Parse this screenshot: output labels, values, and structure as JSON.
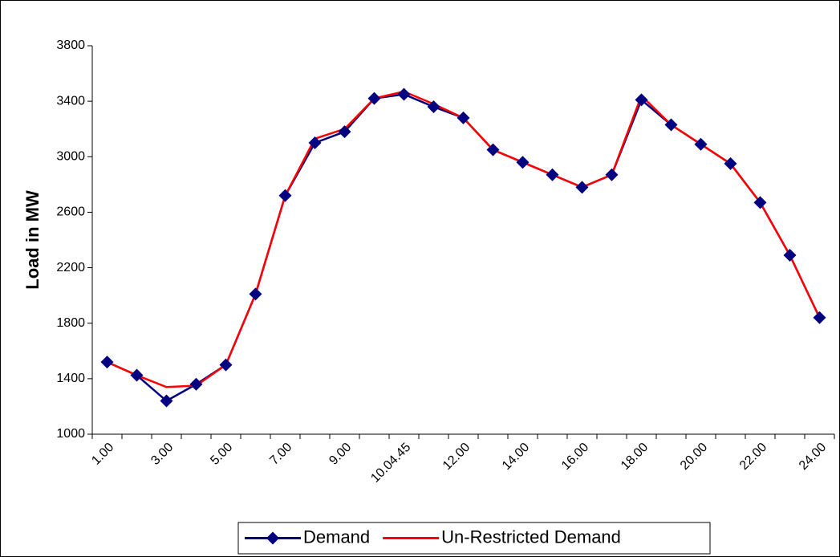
{
  "chart_data": {
    "type": "line",
    "y_label": "Load in MW",
    "categories": [
      "1.00",
      null,
      "3.00",
      null,
      "5.00",
      null,
      "7.00",
      null,
      "9.00",
      null,
      "10.04.45",
      null,
      "12.00",
      null,
      "14.00",
      null,
      "16.00",
      null,
      "18.00",
      null,
      "20.00",
      null,
      "22.00",
      null,
      "24.00"
    ],
    "series": [
      {
        "name": "Demand",
        "color": "#000080",
        "marker": "diamond",
        "values": [
          1520,
          1425,
          1240,
          1360,
          1500,
          2010,
          2720,
          3100,
          3180,
          3420,
          3450,
          3360,
          3280,
          3050,
          2960,
          2870,
          2780,
          2870,
          3410,
          3230,
          3090,
          2950,
          2670,
          2290,
          1840
        ]
      },
      {
        "name": "Un-Restricted Demand",
        "color": "#ff0000",
        "values": [
          1520,
          1425,
          1340,
          1350,
          1500,
          2010,
          2720,
          3130,
          3200,
          3420,
          3470,
          3380,
          3280,
          3050,
          2960,
          2870,
          2780,
          2870,
          3440,
          3230,
          3090,
          2950,
          2670,
          2290,
          1840
        ]
      }
    ],
    "ylim": [
      1000,
      3800
    ],
    "yticks": [
      1000,
      1400,
      1800,
      2200,
      2600,
      3000,
      3400,
      3800
    ],
    "legend": "bottom"
  }
}
